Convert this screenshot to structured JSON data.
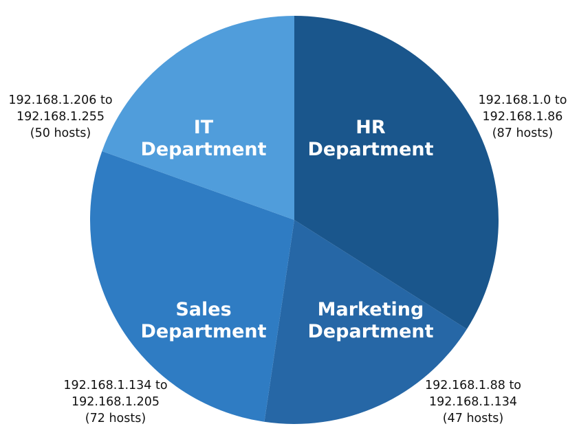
{
  "chart_data": {
    "type": "pie",
    "title": "",
    "start_angle_deg": 0,
    "direction": "clockwise",
    "legend": "none",
    "slices": [
      {
        "name": "HR Department",
        "label_lines": [
          "HR",
          "Department"
        ],
        "value": 87,
        "range_lines": [
          "192.168.1.0 to",
          "192.168.1.86",
          "(87 hosts)"
        ],
        "color": "#1a568c"
      },
      {
        "name": "Marketing Department",
        "label_lines": [
          "Marketing",
          "Department"
        ],
        "value": 47,
        "range_lines": [
          "192.168.1.88 to",
          "192.168.1.134",
          "(47 hosts)"
        ],
        "color": "#2667a6"
      },
      {
        "name": "Sales Department",
        "label_lines": [
          "Sales",
          "Department"
        ],
        "value": 72,
        "range_lines": [
          "192.168.1.134 to",
          "192.168.1.205",
          "(72 hosts)"
        ],
        "color": "#2f7cc3"
      },
      {
        "name": "IT Department",
        "label_lines": [
          "IT",
          "Department"
        ],
        "value": 50,
        "range_lines": [
          "192.168.1.206 to",
          "192.168.1.255",
          "(50 hosts)"
        ],
        "color": "#509ddb"
      }
    ]
  }
}
